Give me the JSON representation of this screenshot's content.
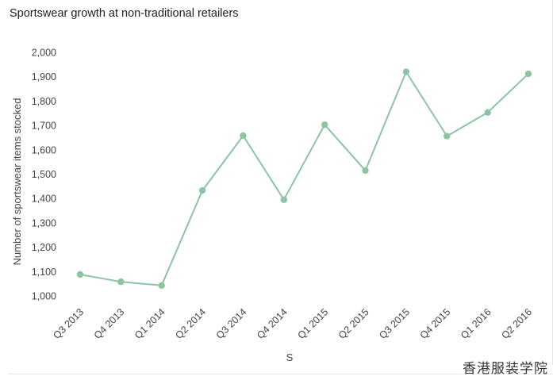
{
  "chart_data": {
    "type": "line",
    "title": "Sportswear growth at non-traditional retailers",
    "xlabel": "S",
    "ylabel": "Number of sportswear items stocked",
    "categories": [
      "Q3 2013",
      "Q4 2013",
      "Q1 2014",
      "Q2 2014",
      "Q3 2014",
      "Q4 2014",
      "Q1 2015",
      "Q2 2015",
      "Q3 2015",
      "Q4 2015",
      "Q1 2016",
      "Q2 2016"
    ],
    "series": [
      {
        "values": [
          1088,
          1058,
          1043,
          1433,
          1658,
          1395,
          1703,
          1515,
          1920,
          1656,
          1753,
          1912
        ]
      }
    ],
    "ylim": [
      1000,
      2000
    ],
    "yticks": [
      1000,
      1100,
      1200,
      1300,
      1400,
      1500,
      1600,
      1700,
      1800,
      1900,
      2000
    ],
    "ytick_labels": [
      "1,000",
      "1,100",
      "1,200",
      "1,300",
      "1,400",
      "1,500",
      "1,600",
      "1,700",
      "1,800",
      "1,900",
      "2,000"
    ],
    "grid": false,
    "colors": {
      "line": "#8dc4a2",
      "marker": "#8dc4a2",
      "text": "#444444"
    }
  },
  "watermark": "香港服装学院"
}
